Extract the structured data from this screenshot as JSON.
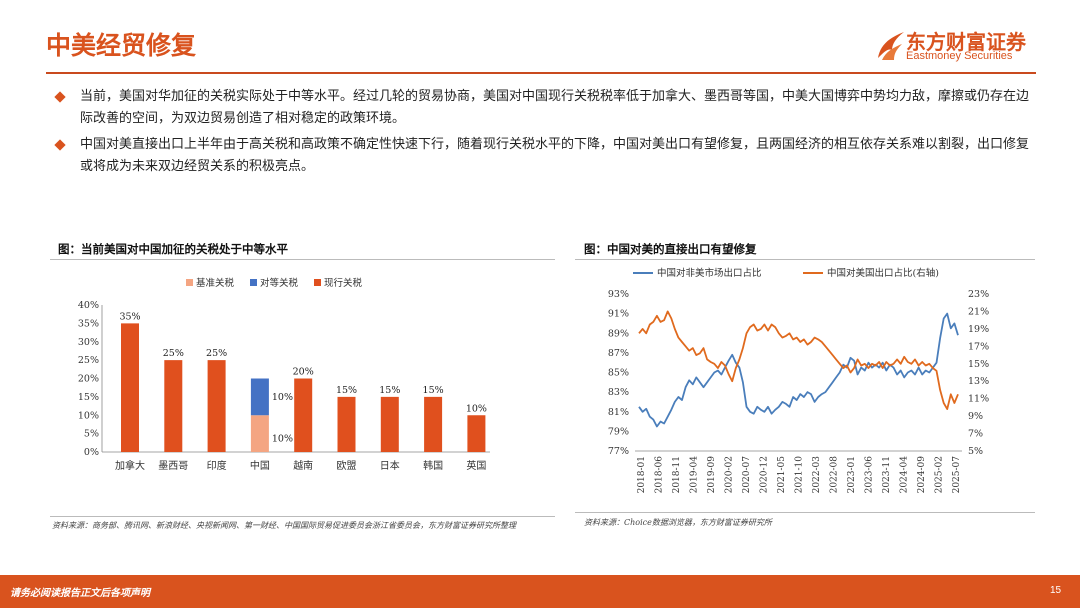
{
  "header": {
    "title": "中美经贸修复",
    "logo_cn": "东方财富证券",
    "logo_en": "Eastmoney Securities"
  },
  "bullets": [
    "当前，美国对华加征的关税实际处于中等水平。经过几轮的贸易协商，美国对中国现行关税税率低于加拿大、墨西哥等国，中美大国博弈中势均力敌，摩擦或仍存在边际改善的空间，为双边贸易创造了相对稳定的政策环境。",
    "中国对美直接出口上半年由于高关税和高政策不确定性快速下行，随着现行关税水平的下降，中国对美出口有望修复，且两国经济的相互依存关系难以割裂，出口修复或将成为未来双边经贸关系的积极亮点。"
  ],
  "left_chart": {
    "title": "图：当前美国对中国加征的关税处于中等水平",
    "source": "资料来源：商务部、腾讯网、新浪财经、央视新闻网、第一财经、中国国际贸易促进委员会浙江省委员会，东方财富证券研究所整理"
  },
  "right_chart": {
    "title": "图：中国对美的直接出口有望修复",
    "source": "资料来源：Choice数据浏览器，东方财富证券研究所"
  },
  "footer": {
    "disclaimer": "请务必阅读报告正文后各项声明",
    "page_number": "15"
  },
  "colors": {
    "accent": "#d9531e",
    "benchmark": "#f4a582",
    "reciprocal": "#4472c4",
    "current": "#e0501e",
    "line_blue": "#4a7ebb",
    "line_orange": "#e06a1e"
  },
  "chart_data": [
    {
      "type": "bar",
      "stacked": true,
      "categories": [
        "加拿大",
        "墨西哥",
        "印度",
        "中国",
        "越南",
        "欧盟",
        "日本",
        "韩国",
        "英国"
      ],
      "series": [
        {
          "name": "基准关税",
          "values": [
            0,
            0,
            0,
            10,
            0,
            0,
            0,
            0,
            0
          ]
        },
        {
          "name": "对等关税",
          "values": [
            0,
            0,
            0,
            10,
            0,
            0,
            0,
            0,
            0
          ]
        },
        {
          "name": "现行关税",
          "values": [
            35,
            25,
            25,
            0,
            20,
            15,
            15,
            15,
            10
          ]
        }
      ],
      "data_labels": [
        "35%",
        "25%",
        "25%",
        "10%",
        "10%",
        "20%",
        "15%",
        "15%",
        "15%",
        "10%"
      ],
      "yticks": [
        "0%",
        "5%",
        "10%",
        "15%",
        "20%",
        "25%",
        "30%",
        "35%",
        "40%"
      ],
      "ylim": [
        0,
        40
      ],
      "legend_position": "top-left"
    },
    {
      "type": "line",
      "x_ticks": [
        "2018-01",
        "2018-06",
        "2018-11",
        "2019-04",
        "2019-09",
        "2020-02",
        "2020-07",
        "2020-12",
        "2021-05",
        "2021-10",
        "2022-03",
        "2022-08",
        "2023-01",
        "2023-06",
        "2023-11",
        "2024-04",
        "2024-09",
        "2025-02",
        "2025-07"
      ],
      "y_left_ticks": [
        "77%",
        "79%",
        "81%",
        "83%",
        "85%",
        "87%",
        "89%",
        "91%",
        "93%"
      ],
      "y_left_lim": [
        77,
        93
      ],
      "y_right_ticks": [
        "5%",
        "7%",
        "9%",
        "11%",
        "13%",
        "15%",
        "17%",
        "19%",
        "21%",
        "23%"
      ],
      "y_right_lim": [
        5,
        23
      ],
      "legend_position": "top",
      "series": [
        {
          "name": "中国对非美市场出口占比",
          "axis": "left",
          "values": [
            81.5,
            81.0,
            81.3,
            80.5,
            80.2,
            79.5,
            80.0,
            79.8,
            80.5,
            81.2,
            82.0,
            82.5,
            82.2,
            83.5,
            84.2,
            83.8,
            84.5,
            84.0,
            83.5,
            84.0,
            84.5,
            85.0,
            85.2,
            84.8,
            85.5,
            86.2,
            86.8,
            86.0,
            85.5,
            84.0,
            81.5,
            81.0,
            80.8,
            81.5,
            81.2,
            81.0,
            81.5,
            80.8,
            81.2,
            81.5,
            82.0,
            81.8,
            81.5,
            82.5,
            82.2,
            82.8,
            82.5,
            83.0,
            82.8,
            82.0,
            82.5,
            82.8,
            83.0,
            83.5,
            84.0,
            84.5,
            85.0,
            85.8,
            85.5,
            86.5,
            86.2,
            84.8,
            85.5,
            85.2,
            86.0,
            85.5,
            85.8,
            85.5,
            86.0,
            85.2,
            85.8,
            85.5,
            84.8,
            85.2,
            84.5,
            85.0,
            85.2,
            84.8,
            85.5,
            84.8,
            85.2,
            85.0,
            85.5,
            86.0,
            88.5,
            90.5,
            91.0,
            89.5,
            90.0,
            88.8
          ]
        },
        {
          "name": "中国对美国出口占比(右轴)",
          "axis": "right",
          "values": [
            18.5,
            19.0,
            18.5,
            19.5,
            19.8,
            20.5,
            19.8,
            20.0,
            21.0,
            20.2,
            19.0,
            18.0,
            17.5,
            17.0,
            16.5,
            16.8,
            16.0,
            16.2,
            16.8,
            15.5,
            15.2,
            15.0,
            14.5,
            15.2,
            14.8,
            13.8,
            13.0,
            14.5,
            15.5,
            16.8,
            18.5,
            19.2,
            19.5,
            18.8,
            19.0,
            19.5,
            18.8,
            19.5,
            19.2,
            18.5,
            18.0,
            18.2,
            18.5,
            17.8,
            18.0,
            17.5,
            17.8,
            17.2,
            17.5,
            18.0,
            17.8,
            17.5,
            17.0,
            16.5,
            16.0,
            15.5,
            15.0,
            14.5,
            14.8,
            14.0,
            14.5,
            15.5,
            14.8,
            15.0,
            14.5,
            15.0,
            14.8,
            15.2,
            14.5,
            15.2,
            14.8,
            15.0,
            15.5,
            15.0,
            15.8,
            15.2,
            15.0,
            15.5,
            14.8,
            15.2,
            14.8,
            15.0,
            14.5,
            14.2,
            12.0,
            10.5,
            9.8,
            11.5,
            10.5,
            11.5
          ]
        }
      ]
    }
  ]
}
